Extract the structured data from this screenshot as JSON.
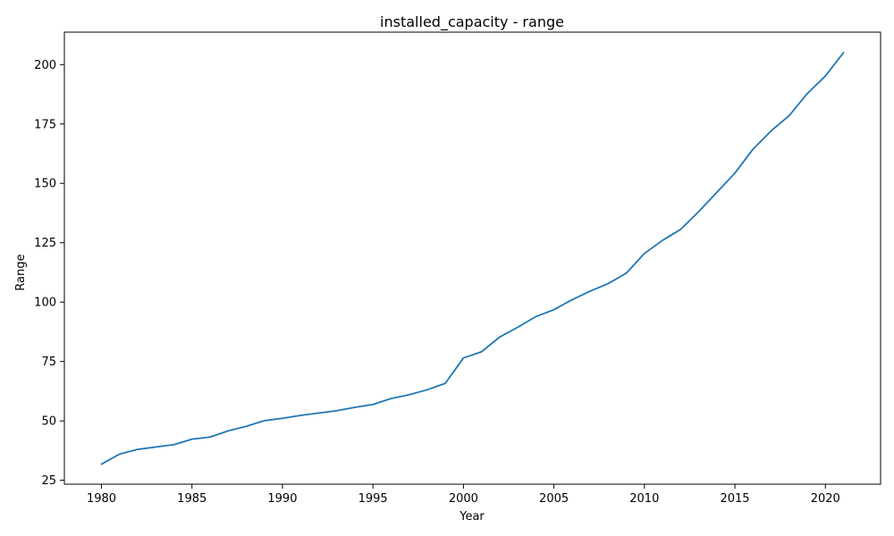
{
  "chart_data": {
    "type": "line",
    "title": "installed_capacity - range",
    "xlabel": "Year",
    "ylabel": "Range",
    "xlim": [
      1977.95,
      2023.05
    ],
    "ylim": [
      23.35,
      213.65
    ],
    "xticks": [
      1980,
      1985,
      1990,
      1995,
      2000,
      2005,
      2010,
      2015,
      2020
    ],
    "yticks": [
      25,
      50,
      75,
      100,
      125,
      150,
      175,
      200
    ],
    "grid": false,
    "legend": "none",
    "series": [
      {
        "color": "#1f77b4",
        "x": [
          1980,
          1981,
          1982,
          1983,
          1984,
          1985,
          1986,
          1987,
          1988,
          1989,
          1990,
          1991,
          1992,
          1993,
          1994,
          1995,
          1996,
          1997,
          1998,
          1999,
          2000,
          2001,
          2002,
          2003,
          2004,
          2005,
          2006,
          2007,
          2008,
          2009,
          2010,
          2011,
          2012,
          2013,
          2014,
          2015,
          2016,
          2017,
          2018,
          2019,
          2020,
          2021
        ],
        "y": [
          31.8,
          36.0,
          38.0,
          39.0,
          40.0,
          42.3,
          43.2,
          45.8,
          47.7,
          50.1,
          51.1,
          52.3,
          53.3,
          54.3,
          55.7,
          56.9,
          59.4,
          61.0,
          63.1,
          65.8,
          76.5,
          79.1,
          85.3,
          89.4,
          93.9,
          96.8,
          101.0,
          104.6,
          107.8,
          112.2,
          120.5,
          126.0,
          130.6,
          138.1,
          146.2,
          154.3,
          164.4,
          172.1,
          178.5,
          187.8,
          195.2,
          205.0
        ]
      }
    ]
  }
}
